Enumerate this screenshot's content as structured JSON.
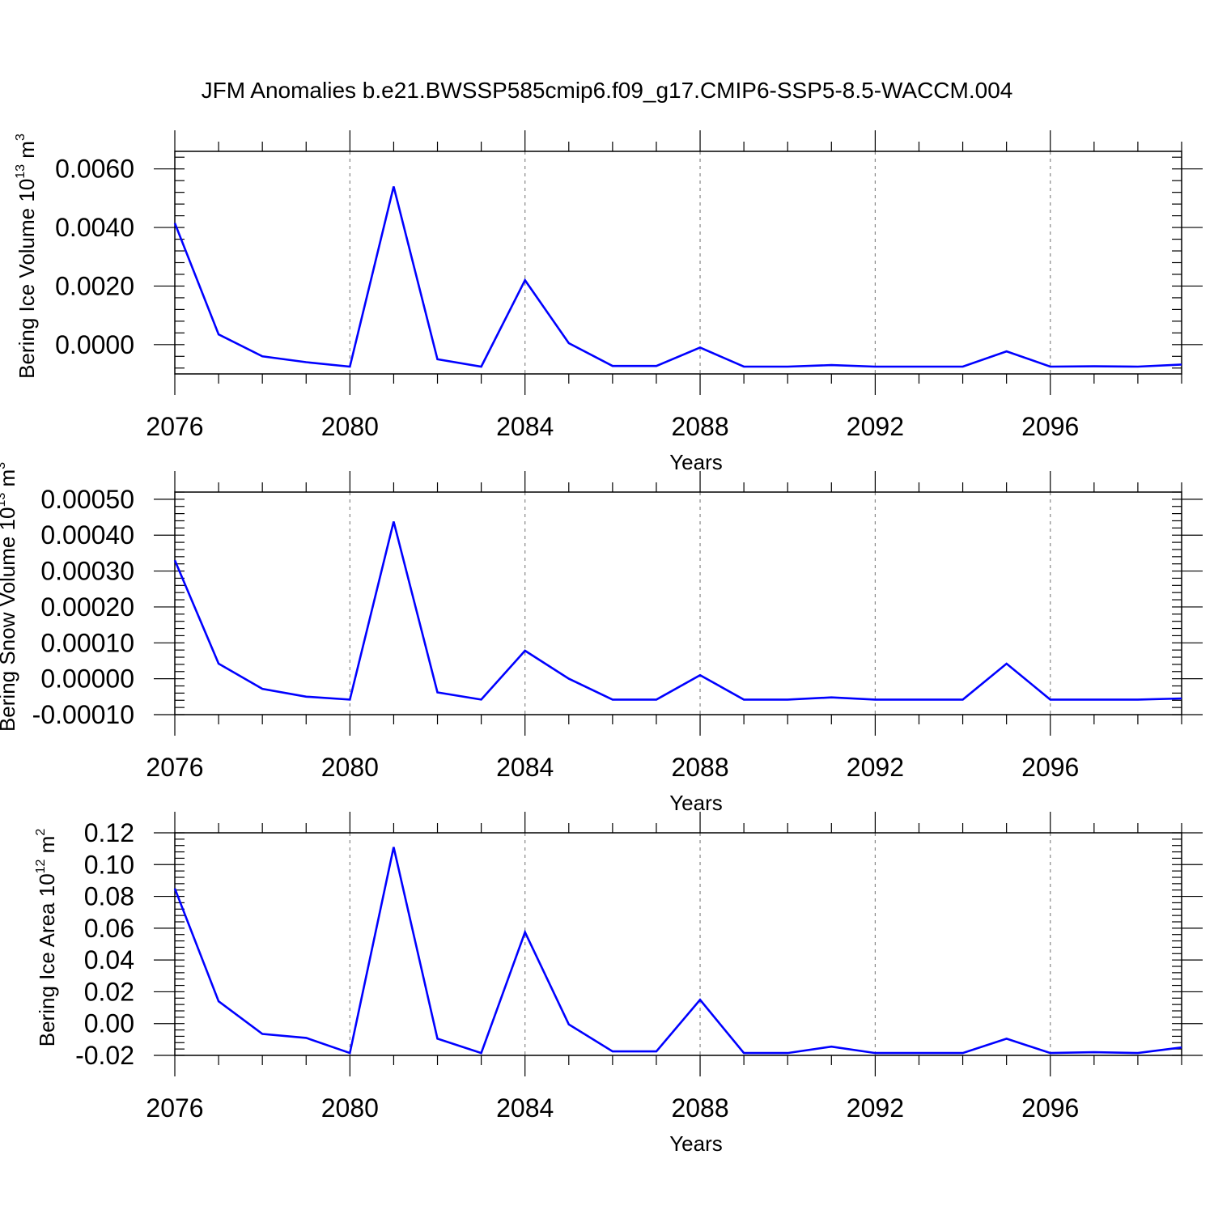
{
  "figure": {
    "title": "JFM Anomalies b.e21.BWSSP585cmip6.f09_g17.CMIP6-SSP5-8.5-WACCM.004",
    "line_color": "#0000ff"
  },
  "chart_data": [
    {
      "type": "line",
      "title": "JFM Anomalies b.e21.BWSSP585cmip6.f09_g17.CMIP6-SSP5-8.5-WACCM.004",
      "xlabel": "Years",
      "ylabel": "Bering Ice Volume 10",
      "ylabel_sup": "13",
      "ylabel_unit": "m",
      "ylabel_unit_sup": "3",
      "xlim": [
        2076,
        2099
      ],
      "ylim": [
        -0.001,
        0.0066
      ],
      "xticks": [
        2076,
        2080,
        2084,
        2088,
        2092,
        2096
      ],
      "xtick_labels": [
        "2076",
        "2080",
        "2084",
        "2088",
        "2092",
        "2096"
      ],
      "yticks": [
        0.0,
        0.002,
        0.004,
        0.006
      ],
      "ytick_labels": [
        "0.0000",
        "0.0020",
        "0.0040",
        "0.0060"
      ],
      "yminor_step": 0.0004,
      "x": [
        2076,
        2077,
        2078,
        2079,
        2080,
        2081,
        2082,
        2083,
        2084,
        2085,
        2086,
        2087,
        2088,
        2089,
        2090,
        2091,
        2092,
        2093,
        2094,
        2095,
        2096,
        2097,
        2098,
        2099
      ],
      "series": [
        {
          "name": "Bering Ice Volume",
          "values": [
            0.00415,
            0.00035,
            -0.0004,
            -0.0006,
            -0.00075,
            0.0054,
            -0.0005,
            -0.00075,
            0.0022,
            5e-05,
            -0.00073,
            -0.00073,
            -0.0001,
            -0.00075,
            -0.00075,
            -0.0007,
            -0.00075,
            -0.00075,
            -0.00075,
            -0.00023,
            -0.00075,
            -0.00074,
            -0.00075,
            -0.00068
          ]
        }
      ]
    },
    {
      "type": "line",
      "xlabel": "Years",
      "ylabel": "Bering Snow Volume 10",
      "ylabel_sup": "13",
      "ylabel_unit": "m",
      "ylabel_unit_sup": "3",
      "xlim": [
        2076,
        2099
      ],
      "ylim": [
        -0.0001,
        0.00052
      ],
      "xticks": [
        2076,
        2080,
        2084,
        2088,
        2092,
        2096
      ],
      "xtick_labels": [
        "2076",
        "2080",
        "2084",
        "2088",
        "2092",
        "2096"
      ],
      "yticks": [
        -0.0001,
        0.0,
        0.0001,
        0.0002,
        0.0003,
        0.0004,
        0.0005
      ],
      "ytick_labels": [
        "-0.00010",
        "0.00000",
        "0.00010",
        "0.00020",
        "0.00030",
        "0.00040",
        "0.00050"
      ],
      "yminor_step": 2e-05,
      "x": [
        2076,
        2077,
        2078,
        2079,
        2080,
        2081,
        2082,
        2083,
        2084,
        2085,
        2086,
        2087,
        2088,
        2089,
        2090,
        2091,
        2092,
        2093,
        2094,
        2095,
        2096,
        2097,
        2098,
        2099
      ],
      "series": [
        {
          "name": "Bering Snow Volume",
          "values": [
            0.00033,
            4.2e-05,
            -2.8e-05,
            -5e-05,
            -5.8e-05,
            0.000438,
            -3.8e-05,
            -5.8e-05,
            7.8e-05,
            0.0,
            -5.8e-05,
            -5.8e-05,
            1e-05,
            -5.8e-05,
            -5.8e-05,
            -5.2e-05,
            -5.8e-05,
            -5.8e-05,
            -5.8e-05,
            4.2e-05,
            -5.8e-05,
            -5.8e-05,
            -5.8e-05,
            -5.5e-05
          ]
        }
      ]
    },
    {
      "type": "line",
      "xlabel": "Years",
      "ylabel": "Bering Ice Area 10",
      "ylabel_sup": "12",
      "ylabel_unit": "m",
      "ylabel_unit_sup": "2",
      "xlim": [
        2076,
        2099
      ],
      "ylim": [
        -0.02,
        0.12
      ],
      "xticks": [
        2076,
        2080,
        2084,
        2088,
        2092,
        2096
      ],
      "xtick_labels": [
        "2076",
        "2080",
        "2084",
        "2088",
        "2092",
        "2096"
      ],
      "yticks": [
        -0.02,
        0.0,
        0.02,
        0.04,
        0.06,
        0.08,
        0.1,
        0.12
      ],
      "ytick_labels": [
        "-0.02",
        "0.00",
        "0.02",
        "0.04",
        "0.06",
        "0.08",
        "0.10",
        "0.12"
      ],
      "yminor_step": 0.004,
      "x": [
        2076,
        2077,
        2078,
        2079,
        2080,
        2081,
        2082,
        2083,
        2084,
        2085,
        2086,
        2087,
        2088,
        2089,
        2090,
        2091,
        2092,
        2093,
        2094,
        2095,
        2096,
        2097,
        2098,
        2099
      ],
      "series": [
        {
          "name": "Bering Ice Area",
          "values": [
            0.085,
            0.014,
            -0.0065,
            -0.009,
            -0.0185,
            0.111,
            -0.0095,
            -0.0185,
            0.0575,
            -0.0005,
            -0.0175,
            -0.0175,
            0.015,
            -0.0185,
            -0.0185,
            -0.0145,
            -0.0185,
            -0.0185,
            -0.0185,
            -0.0095,
            -0.0185,
            -0.018,
            -0.0185,
            -0.015
          ]
        }
      ]
    }
  ]
}
